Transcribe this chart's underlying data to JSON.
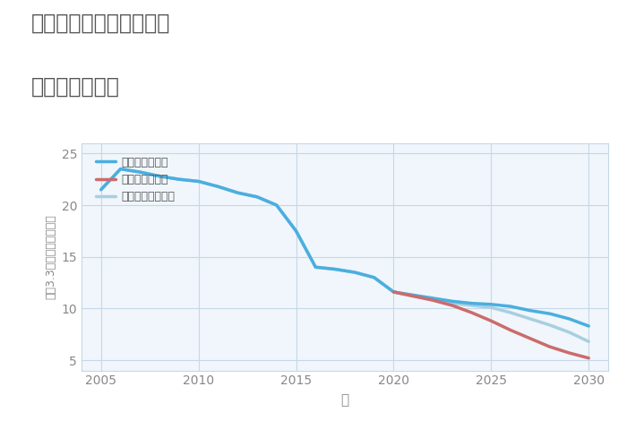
{
  "title_line1": "三重県伊賀市佐那具町の",
  "title_line2": "土地の価格推移",
  "xlabel": "年",
  "ylabel": "坪（3.3㎡）単価（万円）",
  "background_color": "#ffffff",
  "plot_background": "#f0f6fb",
  "grid_color": "#c5d8e8",
  "xlim": [
    2004,
    2031
  ],
  "ylim": [
    4,
    26
  ],
  "yticks": [
    5,
    10,
    15,
    20,
    25
  ],
  "xticks": [
    2005,
    2010,
    2015,
    2020,
    2025,
    2030
  ],
  "good_scenario": {
    "label": "グッドシナリオ",
    "color": "#4aaee0",
    "linewidth": 2.5,
    "years": [
      2005,
      2006,
      2007,
      2008,
      2009,
      2010,
      2011,
      2012,
      2013,
      2014,
      2015,
      2016,
      2017,
      2018,
      2019,
      2020,
      2021,
      2022,
      2023,
      2024,
      2025,
      2026,
      2027,
      2028,
      2029,
      2030
    ],
    "values": [
      21.5,
      23.5,
      23.2,
      22.8,
      22.5,
      22.3,
      21.8,
      21.2,
      20.8,
      20.0,
      17.5,
      14.0,
      13.8,
      13.5,
      13.0,
      11.6,
      11.3,
      11.0,
      10.7,
      10.5,
      10.4,
      10.2,
      9.8,
      9.5,
      9.0,
      8.3
    ]
  },
  "bad_scenario": {
    "label": "バッドシナリオ",
    "color": "#cc6b6b",
    "linewidth": 2.5,
    "years": [
      2020,
      2021,
      2022,
      2023,
      2024,
      2025,
      2026,
      2027,
      2028,
      2029,
      2030
    ],
    "values": [
      11.6,
      11.2,
      10.8,
      10.3,
      9.6,
      8.8,
      7.9,
      7.1,
      6.3,
      5.7,
      5.2
    ]
  },
  "normal_scenario": {
    "label": "ノーマルシナリオ",
    "color": "#a8cfe0",
    "linewidth": 2.5,
    "years": [
      2005,
      2006,
      2007,
      2008,
      2009,
      2010,
      2011,
      2012,
      2013,
      2014,
      2015,
      2016,
      2017,
      2018,
      2019,
      2020,
      2021,
      2022,
      2023,
      2024,
      2025,
      2026,
      2027,
      2028,
      2029,
      2030
    ],
    "values": [
      21.5,
      23.5,
      23.2,
      22.8,
      22.5,
      22.3,
      21.8,
      21.2,
      20.8,
      20.0,
      17.5,
      14.0,
      13.8,
      13.5,
      13.0,
      11.6,
      11.2,
      10.9,
      10.5,
      10.3,
      10.1,
      9.6,
      9.0,
      8.4,
      7.7,
      6.8
    ]
  },
  "title_color": "#555555",
  "axis_color": "#888888",
  "tick_color": "#888888"
}
